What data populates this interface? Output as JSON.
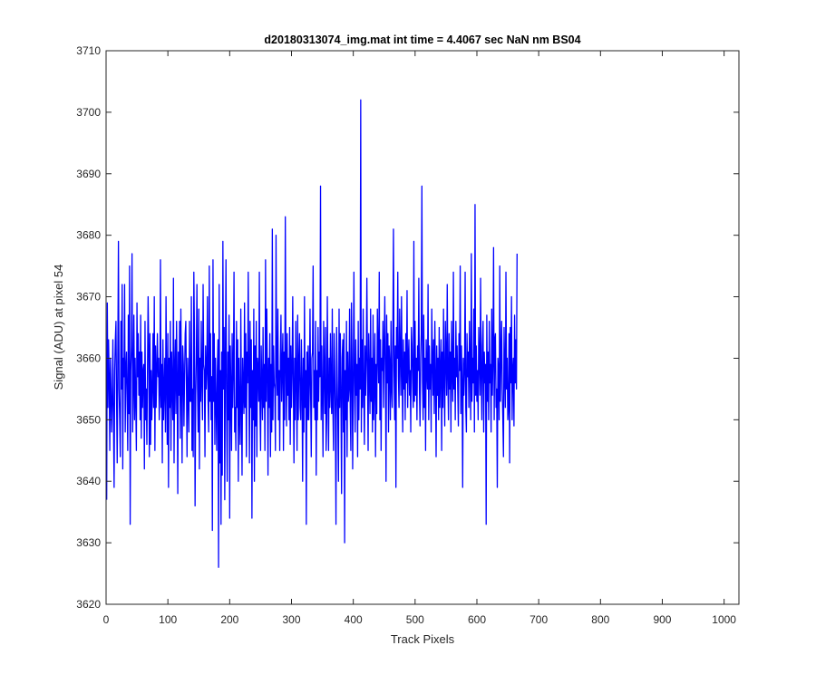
{
  "chart_data": {
    "type": "line",
    "title": "d20180313074_img.mat int time = 4.4067 sec  NaN nm BS04",
    "xlabel": "Track Pixels",
    "ylabel": "Signal (ADU) at pixel 54",
    "xlim": [
      0,
      1024
    ],
    "ylim": [
      3620,
      3710
    ],
    "xticks": [
      0,
      100,
      200,
      300,
      400,
      500,
      600,
      700,
      800,
      900,
      1000
    ],
    "yticks": [
      3620,
      3630,
      3640,
      3650,
      3660,
      3670,
      3680,
      3690,
      3700,
      3710
    ],
    "grid": false,
    "legend": "none",
    "series": [
      {
        "color": "#0000ff",
        "x_start": 1,
        "x_step": 1,
        "values": [
          3637,
          3669,
          3652,
          3663,
          3657,
          3645,
          3660,
          3655,
          3648,
          3653,
          3663,
          3650,
          3639,
          3658,
          3663,
          3666,
          3653,
          3643,
          3661,
          3679,
          3655,
          3650,
          3644,
          3666,
          3655,
          3672,
          3642,
          3660,
          3657,
          3672,
          3648,
          3658,
          3661,
          3654,
          3645,
          3667,
          3651,
          3675,
          3633,
          3658,
          3662,
          3677,
          3648,
          3655,
          3667,
          3650,
          3660,
          3653,
          3645,
          3669,
          3657,
          3664,
          3654,
          3661,
          3650,
          3667,
          3647,
          3661,
          3652,
          3658,
          3659,
          3642,
          3666,
          3650,
          3655,
          3646,
          3658,
          3670,
          3662,
          3644,
          3664,
          3646,
          3658,
          3650,
          3655,
          3664,
          3652,
          3670,
          3645,
          3662,
          3652,
          3658,
          3664,
          3657,
          3660,
          3650,
          3654,
          3676,
          3652,
          3659,
          3643,
          3663,
          3650,
          3655,
          3660,
          3648,
          3670,
          3656,
          3646,
          3664,
          3639,
          3660,
          3652,
          3666,
          3645,
          3661,
          3655,
          3650,
          3673,
          3643,
          3658,
          3663,
          3651,
          3666,
          3657,
          3638,
          3661,
          3654,
          3666,
          3647,
          3668,
          3656,
          3643,
          3662,
          3659,
          3649,
          3657,
          3664,
          3666,
          3656,
          3644,
          3660,
          3654,
          3648,
          3666,
          3653,
          3653,
          3670,
          3645,
          3655,
          3644,
          3674,
          3664,
          3636,
          3654,
          3660,
          3672,
          3655,
          3648,
          3668,
          3642,
          3660,
          3653,
          3666,
          3656,
          3650,
          3672,
          3659,
          3658,
          3644,
          3662,
          3655,
          3658,
          3670,
          3653,
          3648,
          3675,
          3653,
          3664,
          3650,
          3657,
          3632,
          3676,
          3653,
          3664,
          3646,
          3660,
          3653,
          3645,
          3658,
          3663,
          3626,
          3672,
          3643,
          3658,
          3633,
          3661,
          3641,
          3679,
          3655,
          3665,
          3637,
          3660,
          3676,
          3652,
          3640,
          3661,
          3650,
          3667,
          3634,
          3662,
          3655,
          3645,
          3664,
          3652,
          3658,
          3674,
          3648,
          3652,
          3645,
          3666,
          3652,
          3663,
          3640,
          3660,
          3651,
          3646,
          3668,
          3653,
          3641,
          3660,
          3655,
          3651,
          3669,
          3652,
          3664,
          3644,
          3661,
          3656,
          3674,
          3657,
          3643,
          3666,
          3652,
          3663,
          3634,
          3658,
          3650,
          3668,
          3640,
          3662,
          3649,
          3666,
          3644,
          3660,
          3658,
          3653,
          3674,
          3652,
          3645,
          3662,
          3656,
          3650,
          3665,
          3652,
          3659,
          3645,
          3676,
          3653,
          3668,
          3658,
          3641,
          3660,
          3652,
          3664,
          3644,
          3659,
          3648,
          3681,
          3650,
          3662,
          3656,
          3655,
          3645,
          3680,
          3658,
          3654,
          3668,
          3650,
          3658,
          3645,
          3660,
          3667,
          3653,
          3659,
          3664,
          3645,
          3661,
          3650,
          3683,
          3659,
          3649,
          3664,
          3654,
          3660,
          3650,
          3665,
          3646,
          3662,
          3652,
          3658,
          3670,
          3655,
          3643,
          3660,
          3650,
          3666,
          3657,
          3645,
          3667,
          3650,
          3659,
          3664,
          3652,
          3650,
          3663,
          3656,
          3640,
          3660,
          3648,
          3670,
          3652,
          3658,
          3633,
          3661,
          3650,
          3662,
          3650,
          3656,
          3668,
          3654,
          3644,
          3660,
          3661,
          3675,
          3652,
          3658,
          3650,
          3666,
          3641,
          3658,
          3650,
          3665,
          3653,
          3661,
          3657,
          3688,
          3650,
          3662,
          3654,
          3644,
          3666,
          3658,
          3651,
          3665,
          3645,
          3650,
          3670,
          3656,
          3645,
          3660,
          3652,
          3664,
          3655,
          3651,
          3668,
          3652,
          3645,
          3664,
          3658,
          3650,
          3633,
          3665,
          3657,
          3650,
          3640,
          3668,
          3652,
          3664,
          3654,
          3638,
          3660,
          3663,
          3648,
          3664,
          3630,
          3658,
          3650,
          3666,
          3644,
          3661,
          3653,
          3655,
          3668,
          3652,
          3645,
          3669,
          3660,
          3642,
          3657,
          3674,
          3656,
          3648,
          3663,
          3654,
          3659,
          3644,
          3666,
          3650,
          3660,
          3655,
          3702,
          3648,
          3663,
          3652,
          3668,
          3655,
          3646,
          3662,
          3654,
          3660,
          3673,
          3658,
          3645,
          3664,
          3657,
          3651,
          3668,
          3653,
          3660,
          3648,
          3667,
          3650,
          3656,
          3664,
          3644,
          3659,
          3651,
          3668,
          3661,
          3656,
          3674,
          3650,
          3663,
          3645,
          3660,
          3658,
          3666,
          3652,
          3662,
          3670,
          3658,
          3640,
          3667,
          3656,
          3664,
          3648,
          3662,
          3659,
          3650,
          3666,
          3655,
          3652,
          3664,
          3681,
          3658,
          3650,
          3662,
          3639,
          3665,
          3660,
          3674,
          3657,
          3652,
          3668,
          3661,
          3654,
          3670,
          3658,
          3648,
          3663,
          3655,
          3661,
          3650,
          3664,
          3656,
          3671,
          3652,
          3660,
          3663,
          3654,
          3658,
          3648,
          3665,
          3662,
          3656,
          3652,
          3679,
          3653,
          3666,
          3654,
          3660,
          3650,
          3662,
          3658,
          3673,
          3655,
          3649,
          3660,
          3664,
          3688,
          3656,
          3650,
          3667,
          3652,
          3660,
          3645,
          3663,
          3658,
          3655,
          3672,
          3650,
          3662,
          3655,
          3659,
          3648,
          3668,
          3660,
          3654,
          3663,
          3651,
          3666,
          3657,
          3644,
          3662,
          3654,
          3660,
          3650,
          3665,
          3652,
          3658,
          3663,
          3645,
          3661,
          3652,
          3668,
          3656,
          3649,
          3666,
          3660,
          3654,
          3672,
          3657,
          3650,
          3664,
          3655,
          3661,
          3648,
          3666,
          3658,
          3653,
          3674,
          3655,
          3660,
          3650,
          3666,
          3657,
          3662,
          3655,
          3649,
          3664,
          3658,
          3675,
          3651,
          3662,
          3656,
          3639,
          3660,
          3654,
          3658,
          3674,
          3652,
          3648,
          3664,
          3657,
          3661,
          3652,
          3666,
          3658,
          3650,
          3677,
          3653,
          3660,
          3656,
          3668,
          3648,
          3685,
          3654,
          3662,
          3653,
          3658,
          3650,
          3665,
          3660,
          3654,
          3673,
          3657,
          3650,
          3662,
          3666,
          3648,
          3661,
          3656,
          3659,
          3633,
          3667,
          3653,
          3661,
          3650,
          3666,
          3656,
          3659,
          3648,
          3668,
          3654,
          3660,
          3678,
          3650,
          3663,
          3664,
          3652,
          3655,
          3639,
          3660,
          3658,
          3650,
          3675,
          3653,
          3660,
          3666,
          3655,
          3650,
          3644,
          3665,
          3658,
          3652,
          3674,
          3655,
          3660,
          3650,
          3652,
          3664,
          3643,
          3665,
          3656,
          3670,
          3650,
          3658,
          3660,
          3649,
          3667,
          3656,
          3663,
          3655,
          3677
        ]
      }
    ]
  }
}
